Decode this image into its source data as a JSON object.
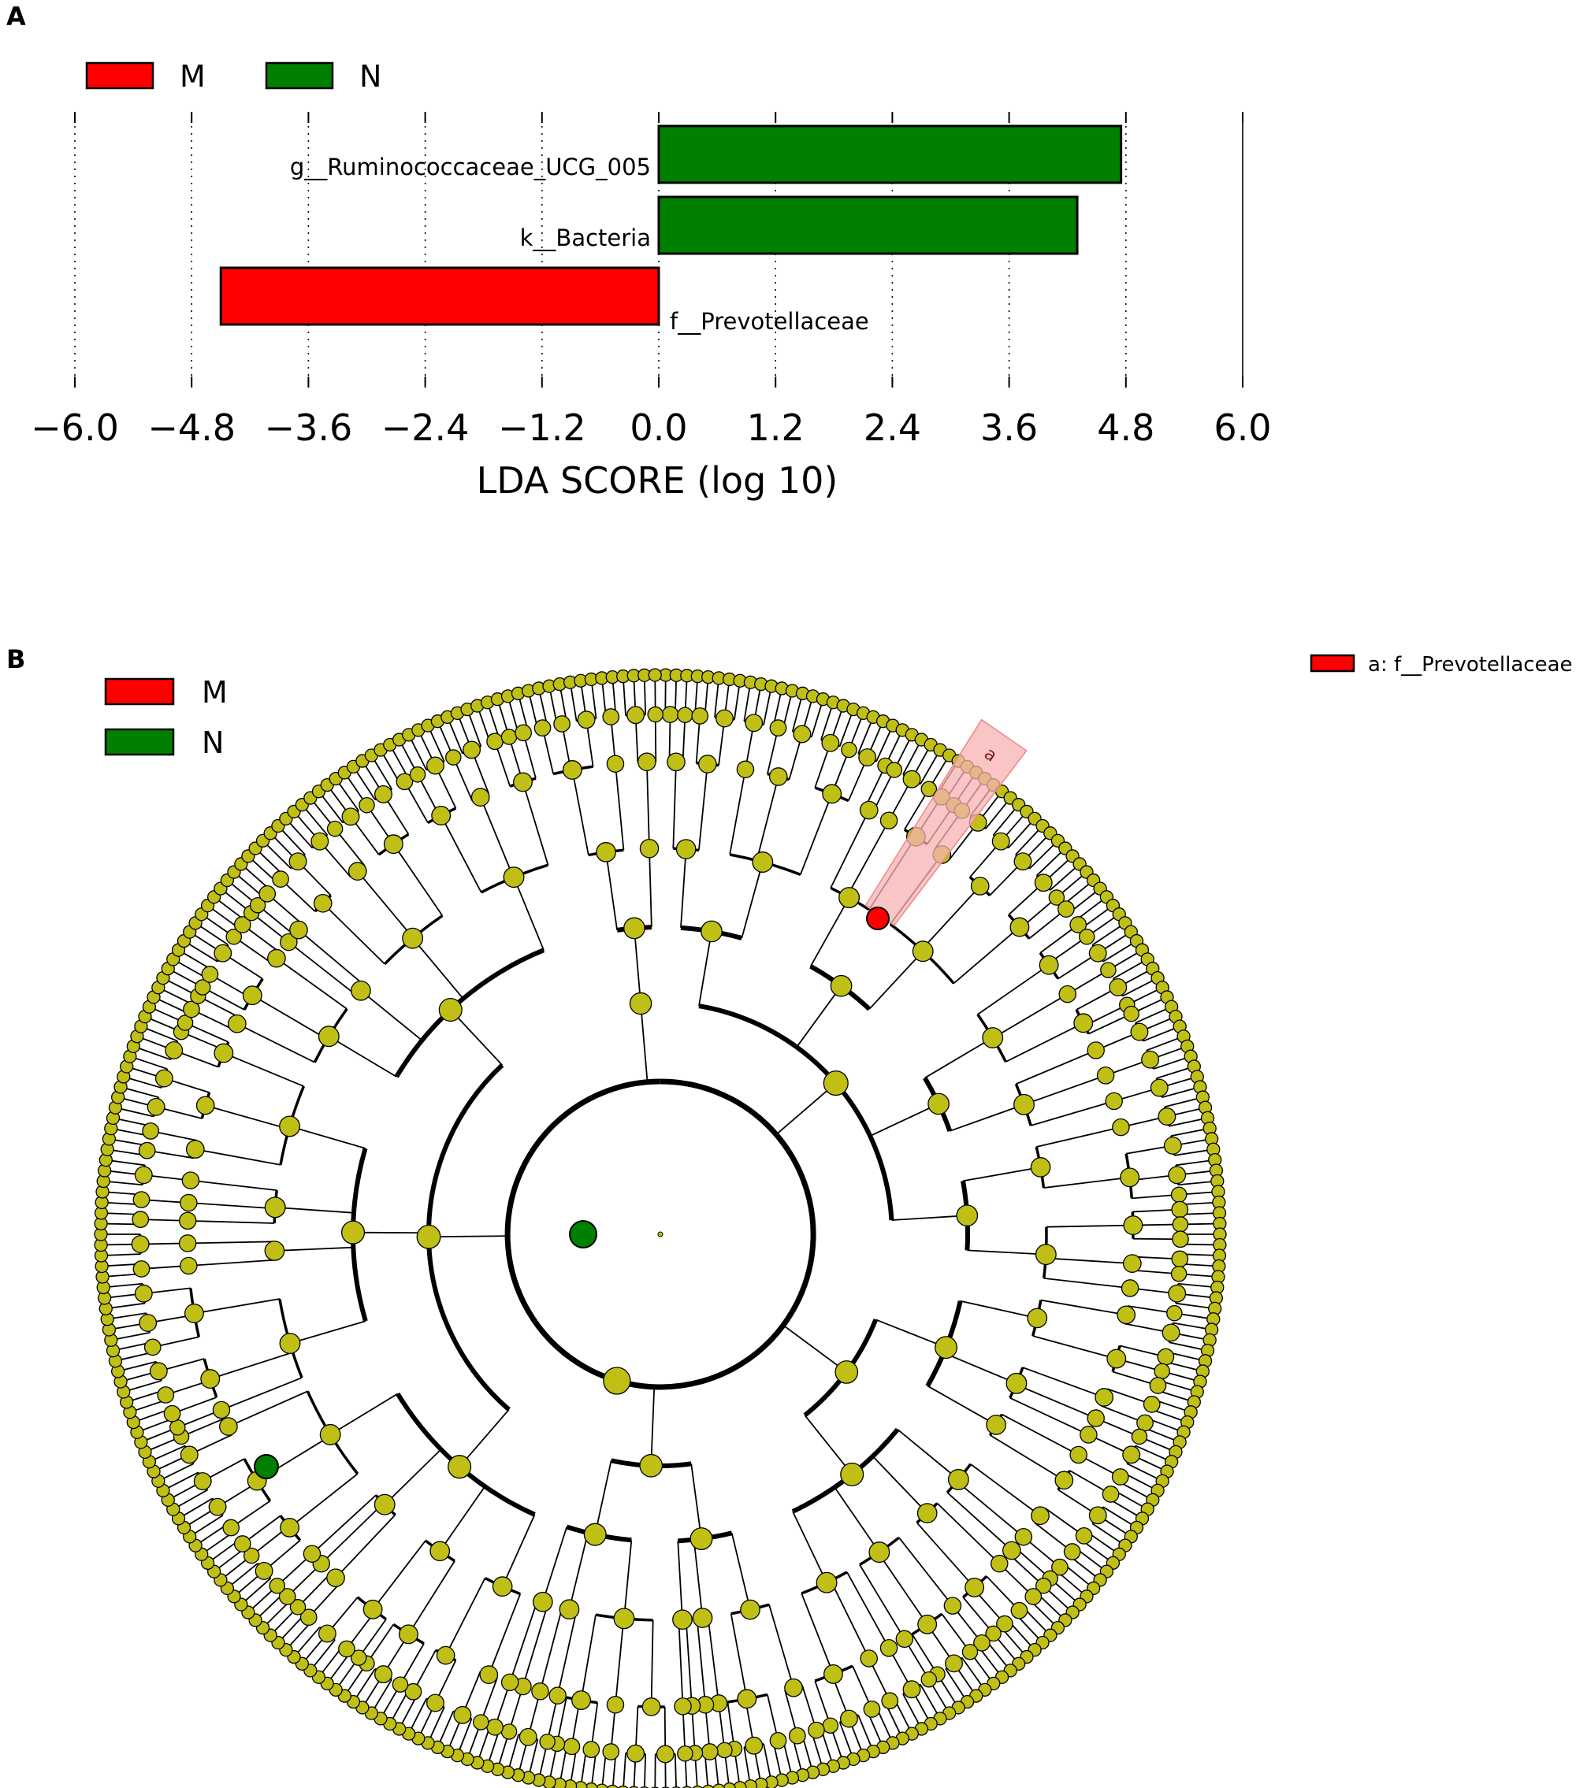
{
  "panel_a": {
    "letter": "A"
  },
  "panel_b": {
    "letter": "B"
  },
  "colors": {
    "M": "#ff0000",
    "N": "#007f00",
    "node": "#bfbf16",
    "highlight": "#f7b2b2"
  },
  "chart_data": [
    {
      "type": "bar",
      "orientation": "horizontal",
      "legend": [
        {
          "name": "M",
          "color": "#ff0000"
        },
        {
          "name": "N",
          "color": "#007f00"
        }
      ],
      "legend_placement": "top-left",
      "categories": [
        "g__Ruminococcaceae_UCG_005",
        "k__Bacteria",
        "f__Prevotellaceae"
      ],
      "values": [
        4.75,
        4.3,
        -4.5
      ],
      "groups": [
        "N",
        "N",
        "M"
      ],
      "xlabel": "LDA SCORE (log 10)",
      "xlim": [
        -6.0,
        6.0
      ],
      "xticks": [
        -6.0,
        -4.8,
        -3.6,
        -2.4,
        -1.2,
        0.0,
        1.2,
        2.4,
        3.6,
        4.8,
        6.0
      ],
      "xtick_labels": [
        "−6.0",
        "−4.8",
        "−3.6",
        "−2.4",
        "−1.2",
        "0.0",
        "1.2",
        "2.4",
        "3.6",
        "4.8",
        "6.0"
      ],
      "grid": "vertical-dotted"
    },
    {
      "type": "cladogram",
      "legend": [
        {
          "name": "M",
          "color": "#ff0000"
        },
        {
          "name": "N",
          "color": "#007f00"
        }
      ],
      "legend_placement": "top-left",
      "highlight_legend": "a: f__Prevotellaceae",
      "highlight_label": "a",
      "highlighted_clade": {
        "label": "a",
        "taxon": "f__Prevotellaceae",
        "group": "M"
      },
      "significant_nodes": [
        {
          "taxon": "f__Prevotellaceae",
          "group": "M"
        },
        {
          "taxon": "k__Bacteria",
          "group": "N"
        },
        {
          "taxon": "g__Ruminococcaceae_UCG_005",
          "group": "N"
        }
      ]
    }
  ]
}
